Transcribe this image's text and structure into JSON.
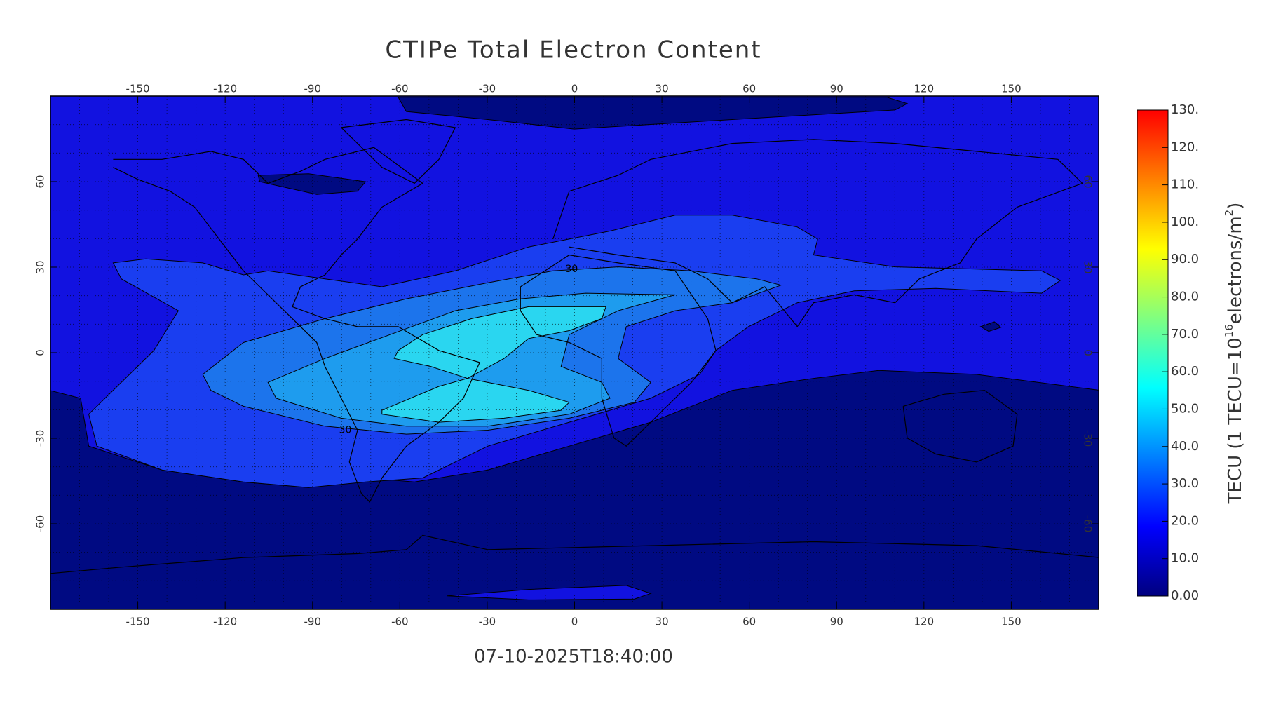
{
  "chart_data": {
    "type": "contour-map",
    "title": "CTIPe Total Electron Content",
    "timestamp": "07-10-2025T18:40:00",
    "xlim": [
      -180,
      180
    ],
    "ylim": [
      -90,
      90
    ],
    "xticks": [
      -150,
      -120,
      -90,
      -60,
      -30,
      0,
      30,
      60,
      90,
      120,
      150
    ],
    "yticks": [
      -60,
      -30,
      0,
      30,
      60
    ],
    "grid": true,
    "grid_spacing": 10,
    "contour_levels": [
      0,
      10,
      20,
      30,
      40,
      50,
      60
    ],
    "contour_colors": [
      "#000a82",
      "#1212e0",
      "#1a3ef0",
      "#1c74ec",
      "#1e9cee",
      "#2ad6f0"
    ],
    "contour_labels": [
      30,
      30
    ],
    "clim": [
      0,
      130
    ],
    "cticks": [
      {
        "value": 0,
        "label": "0.00"
      },
      {
        "value": 10,
        "label": "10.0"
      },
      {
        "value": 20,
        "label": "20.0"
      },
      {
        "value": 30,
        "label": "30.0"
      },
      {
        "value": 40,
        "label": "40.0"
      },
      {
        "value": 50,
        "label": "50.0"
      },
      {
        "value": 60,
        "label": "60.0"
      },
      {
        "value": 70,
        "label": "70.0"
      },
      {
        "value": 80,
        "label": "80.0"
      },
      {
        "value": 90,
        "label": "90.0"
      },
      {
        "value": 100,
        "label": "100."
      },
      {
        "value": 110,
        "label": "110."
      },
      {
        "value": 120,
        "label": "120."
      },
      {
        "value": 130,
        "label": "130."
      }
    ],
    "colorbar_colors": [
      "#00007f",
      "#0000ff",
      "#0080ff",
      "#00ffff",
      "#80ff80",
      "#ffff00",
      "#ff8000",
      "#ff0000"
    ],
    "colorbar_label": [
      "TECU (1 TECU=10",
      "16",
      "electrons/m",
      "2",
      ")"
    ]
  }
}
